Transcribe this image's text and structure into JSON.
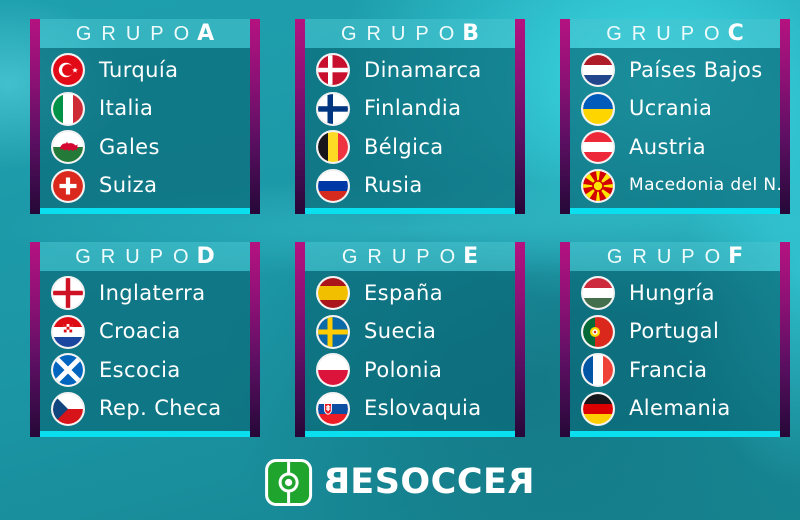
{
  "labels": {
    "group": "GRUPO"
  },
  "colors": {
    "background_teal": "#1B95A4",
    "bright_cyan": "#40E2EE",
    "panel_header": "#2BA9B5",
    "panel_body": "#0F7686",
    "bottom_strip": "#09DFEF",
    "side_bar_top": "#B5127F",
    "side_bar_bottom": "#250838",
    "brand_green": "#1FA42E"
  },
  "groups": [
    {
      "letter": "A",
      "teams": [
        {
          "name": "Turquía",
          "flag": "turkey"
        },
        {
          "name": "Italia",
          "flag": "italy"
        },
        {
          "name": "Gales",
          "flag": "wales"
        },
        {
          "name": "Suiza",
          "flag": "switzerland"
        }
      ]
    },
    {
      "letter": "B",
      "teams": [
        {
          "name": "Dinamarca",
          "flag": "denmark"
        },
        {
          "name": "Finlandia",
          "flag": "finland"
        },
        {
          "name": "Bélgica",
          "flag": "belgium"
        },
        {
          "name": "Rusia",
          "flag": "russia"
        }
      ]
    },
    {
      "letter": "C",
      "teams": [
        {
          "name": "Países Bajos",
          "flag": "netherlands"
        },
        {
          "name": "Ucrania",
          "flag": "ukraine"
        },
        {
          "name": "Austria",
          "flag": "austria"
        },
        {
          "name": "Macedonia del N.",
          "flag": "north-macedonia"
        }
      ]
    },
    {
      "letter": "D",
      "teams": [
        {
          "name": "Inglaterra",
          "flag": "england"
        },
        {
          "name": "Croacia",
          "flag": "croatia"
        },
        {
          "name": "Escocia",
          "flag": "scotland"
        },
        {
          "name": "Rep. Checa",
          "flag": "czech-republic"
        }
      ]
    },
    {
      "letter": "E",
      "teams": [
        {
          "name": "España",
          "flag": "spain"
        },
        {
          "name": "Suecia",
          "flag": "sweden"
        },
        {
          "name": "Polonia",
          "flag": "poland"
        },
        {
          "name": "Eslovaquia",
          "flag": "slovakia"
        }
      ]
    },
    {
      "letter": "F",
      "teams": [
        {
          "name": "Hungría",
          "flag": "hungary"
        },
        {
          "name": "Portugal",
          "flag": "portugal"
        },
        {
          "name": "Francia",
          "flag": "france"
        },
        {
          "name": "Alemania",
          "flag": "germany"
        }
      ]
    }
  ],
  "logo": {
    "first": "B",
    "middle": "ESOCCE",
    "last": "R",
    "icon": "football-field-icon"
  }
}
